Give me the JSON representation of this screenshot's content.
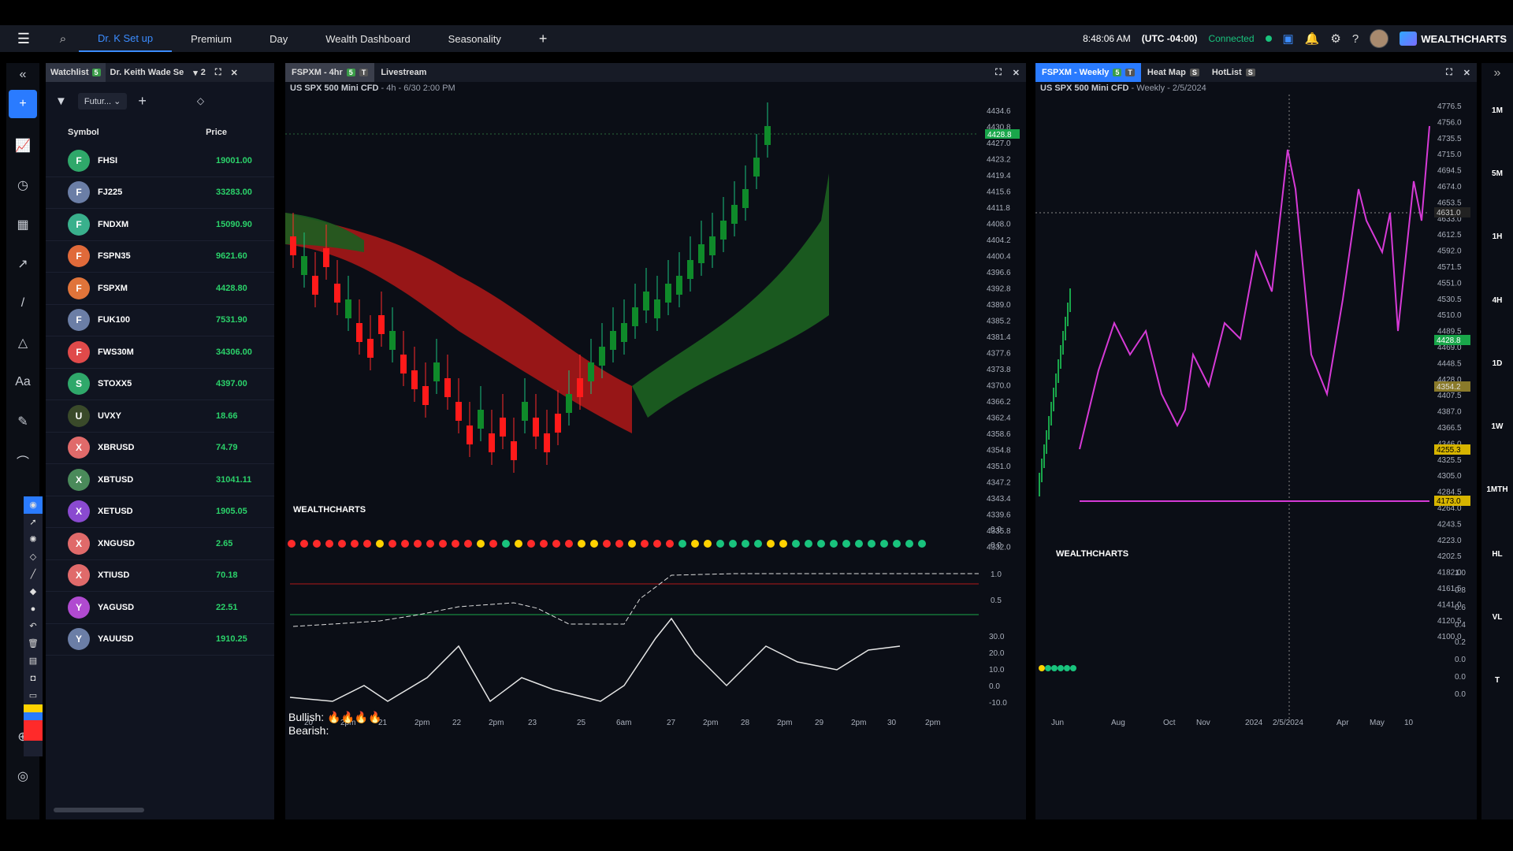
{
  "topbar": {
    "tabs": [
      "Dr. K Set up",
      "Premium",
      "Day",
      "Wealth Dashboard",
      "Seasonality"
    ],
    "add": "+",
    "time": "8:48:06 AM",
    "tz": "(UTC -04:00)",
    "status": "Connected",
    "brand": "WEALTHCHARTS"
  },
  "watchlist": {
    "tab1": "Watchlist",
    "tab1_badge": "5",
    "tab2": "Dr. Keith Wade Se",
    "tab2_count": "2",
    "filter_value": "Futur...",
    "headers": {
      "symbol": "Symbol",
      "price": "Price"
    },
    "rows": [
      {
        "letter": "F",
        "symbol": "FHSI",
        "price": "19001.00",
        "color": "#2fa86a"
      },
      {
        "letter": "F",
        "symbol": "FJ225",
        "price": "33283.00",
        "color": "#6b7ea6"
      },
      {
        "letter": "F",
        "symbol": "FNDXM",
        "price": "15090.90",
        "color": "#39b08c"
      },
      {
        "letter": "F",
        "symbol": "FSPN35",
        "price": "9621.60",
        "color": "#e06a3a"
      },
      {
        "letter": "F",
        "symbol": "FSPXM",
        "price": "4428.80",
        "color": "#e0743a"
      },
      {
        "letter": "F",
        "symbol": "FUK100",
        "price": "7531.90",
        "color": "#6b7ea6"
      },
      {
        "letter": "F",
        "symbol": "FWS30M",
        "price": "34306.00",
        "color": "#e04a4a"
      },
      {
        "letter": "S",
        "symbol": "STOXX5",
        "price": "4397.00",
        "color": "#2fa86a"
      },
      {
        "letter": "U",
        "symbol": "UVXY",
        "price": "18.66",
        "color": "#3a4a2a"
      },
      {
        "letter": "X",
        "symbol": "XBRUSD",
        "price": "74.79",
        "color": "#e06a6a"
      },
      {
        "letter": "X",
        "symbol": "XBTUSD",
        "price": "31041.11",
        "color": "#4a8a5a"
      },
      {
        "letter": "X",
        "symbol": "XETUSD",
        "price": "1905.05",
        "color": "#8a4ad0"
      },
      {
        "letter": "X",
        "symbol": "XNGUSD",
        "price": "2.65",
        "color": "#e06a6a"
      },
      {
        "letter": "X",
        "symbol": "XTIUSD",
        "price": "70.18",
        "color": "#e06a6a"
      },
      {
        "letter": "Y",
        "symbol": "YAGUSD",
        "price": "22.51",
        "color": "#b04ad0"
      },
      {
        "letter": "Y",
        "symbol": "YAUUSD",
        "price": "1910.25",
        "color": "#6b7ea6"
      }
    ]
  },
  "chart1": {
    "tab": "FSPXM - 4hr",
    "badge": "5",
    "tab2": "Livestream",
    "instrument": "US SPX 500 Mini CFD",
    "info": "4h - 6/30 2:00 PM",
    "last_price": "4428.8",
    "price_ticks": [
      "4434.6",
      "4430.8",
      "4427.0",
      "4423.2",
      "4419.4",
      "4415.6",
      "4411.8",
      "4408.0",
      "4404.2",
      "4400.4",
      "4396.6",
      "4392.8",
      "4389.0",
      "4385.2",
      "4381.4",
      "4377.6",
      "4373.8",
      "4370.0",
      "4366.2",
      "4362.4",
      "4358.6",
      "4354.8",
      "4351.0",
      "4347.2",
      "4343.4",
      "4339.6",
      "4335.8",
      "4332.0"
    ],
    "x_ticks": [
      "20",
      "2pm",
      "21",
      "2pm",
      "22",
      "2pm",
      "23",
      "25",
      "6am",
      "27",
      "2pm",
      "28",
      "2pm",
      "29",
      "2pm",
      "30",
      "2pm"
    ],
    "brand": "WEALTHCHARTS",
    "ind1_ticks": [
      "0.0",
      "0.0"
    ],
    "ind2_ticks": [
      "1.0",
      "0.5"
    ],
    "ind3_ticks": [
      "30.0",
      "20.0",
      "10.0",
      "0.0",
      "-10.0"
    ],
    "bullish": "Bullish:",
    "bearish": "Bearish:"
  },
  "chart2": {
    "tab": "FSPXM - Weekly",
    "badge": "5",
    "tab2": "Heat Map",
    "tab3": "HotList",
    "instrument": "US SPX 500 Mini CFD",
    "info": "Weekly - 2/5/2024",
    "price_ticks": [
      "4776.5",
      "4756.0",
      "4735.5",
      "4715.0",
      "4694.5",
      "4674.0",
      "4653.5",
      "4633.0",
      "4612.5",
      "4592.0",
      "4571.5",
      "4551.0",
      "4530.5",
      "4510.0",
      "4489.5",
      "4469.0",
      "4448.5",
      "4428.0",
      "4407.5",
      "4387.0",
      "4366.5",
      "4346.0",
      "4325.5",
      "4305.0",
      "4284.5",
      "4264.0",
      "4243.5",
      "4223.0",
      "4202.5",
      "4182.0",
      "4161.5",
      "4141.0",
      "4120.5",
      "4100.0"
    ],
    "tags": {
      "crosshair": "4631.0",
      "last": "4428.8",
      "t1": "4354.2",
      "t2": "4255.3",
      "t3": "4173.0"
    },
    "x_ticks": [
      "Jun",
      "Aug",
      "Oct",
      "Nov",
      "2024",
      "2/5/2024",
      "Apr",
      "May",
      "10"
    ],
    "brand": "WEALTHCHARTS",
    "ind_ticks": [
      "1.0",
      "0.8",
      "0.6",
      "0.4",
      "0.2",
      "0.0",
      "0.0",
      "0.0"
    ]
  },
  "rightnav": [
    "1M",
    "5M",
    "1H",
    "4H",
    "1D",
    "1W",
    "1MTH",
    "HL",
    "VL",
    "T"
  ],
  "colors": {
    "accent": "#2a7bff",
    "up": "#19c37d",
    "down": "#ff2a2a",
    "magenta": "#d63ad6"
  }
}
